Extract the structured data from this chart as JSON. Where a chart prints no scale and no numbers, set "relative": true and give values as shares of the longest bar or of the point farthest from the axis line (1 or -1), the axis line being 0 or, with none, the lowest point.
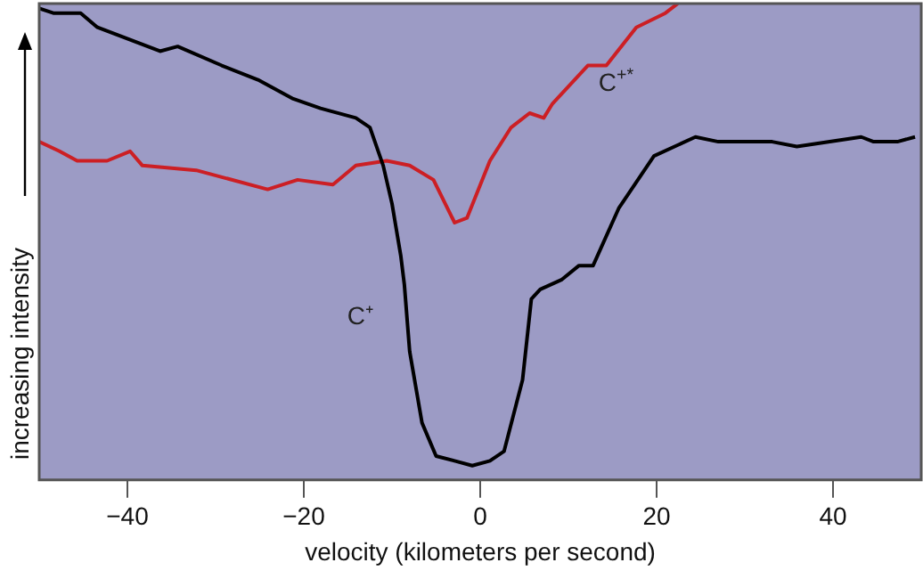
{
  "chart_data": {
    "type": "line",
    "xlabel": "velocity (kilometers per second)",
    "ylabel": "increasing intensity",
    "relative": true,
    "xlim": [
      -50,
      50
    ],
    "xticks": [
      -40,
      -20,
      0,
      20,
      40
    ],
    "grid": false,
    "legend": false,
    "marker": "none",
    "line_style": "solid",
    "series": [
      {
        "name": "C⁺",
        "color": "#000000",
        "x": [
          -50,
          -48.4,
          -45.3,
          -43.4,
          -36.3,
          -34.3,
          -29.3,
          -25.2,
          -21.2,
          -18.1,
          -14.1,
          -12.5,
          -11,
          -10,
          -9,
          -8.6,
          -8,
          -6.6,
          -5,
          -2.9,
          -0.9,
          1.1,
          2.7,
          4.1,
          4.8,
          5.8,
          6.8,
          9.2,
          11.2,
          12.8,
          15.7,
          19.7,
          24.4,
          27,
          33.1,
          35.9,
          43.2,
          44.6,
          47.3,
          49.3
        ],
        "values": [
          0.99,
          0.98,
          0.98,
          0.95,
          0.9,
          0.91,
          0.87,
          0.84,
          0.8,
          0.78,
          0.76,
          0.74,
          0.66,
          0.58,
          0.47,
          0.41,
          0.27,
          0.12,
          0.05,
          0.04,
          0.03,
          0.04,
          0.06,
          0.16,
          0.21,
          0.38,
          0.4,
          0.42,
          0.45,
          0.45,
          0.57,
          0.68,
          0.72,
          0.71,
          0.71,
          0.7,
          0.72,
          0.71,
          0.71,
          0.72
        ]
      },
      {
        "name": "C$^{+*}$",
        "color": "#cc1f24",
        "x": [
          -50,
          -47.7,
          -45.7,
          -42.3,
          -39.7,
          -38.3,
          -32.2,
          -24.1,
          -20.7,
          -16.7,
          -14.1,
          -10.6,
          -8,
          -5.3,
          -2.9,
          -1.5,
          1.1,
          3.5,
          5.6,
          7.2,
          8.2,
          12.2,
          14.3,
          17.7,
          21,
          22.4
        ],
        "values": [
          0.71,
          0.69,
          0.67,
          0.67,
          0.69,
          0.66,
          0.65,
          0.61,
          0.63,
          0.62,
          0.66,
          0.67,
          0.66,
          0.63,
          0.54,
          0.55,
          0.67,
          0.74,
          0.77,
          0.76,
          0.79,
          0.87,
          0.87,
          0.95,
          0.98,
          1
        ]
      }
    ]
  }
}
